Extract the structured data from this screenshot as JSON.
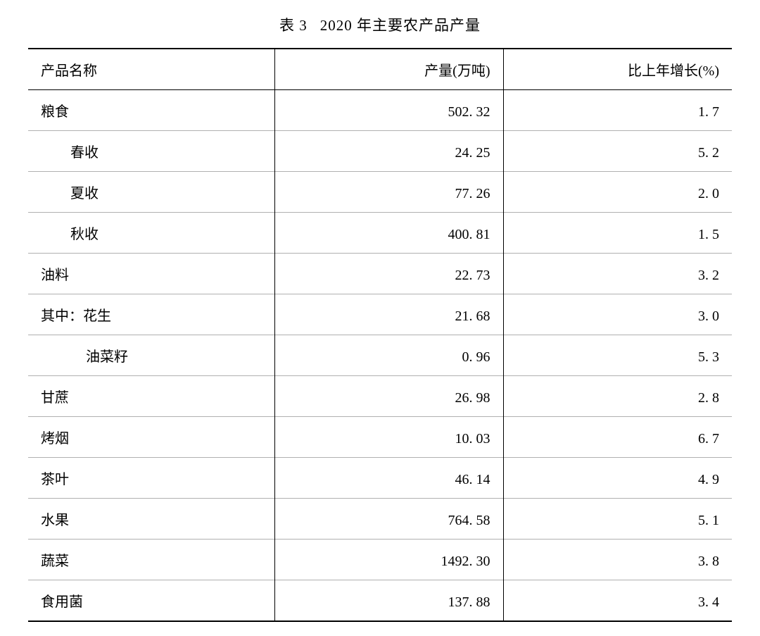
{
  "title_prefix": "表 3",
  "title_main": "2020 年主要农产品产量",
  "columns": {
    "name": "产品名称",
    "value": "产量(万吨)",
    "growth": "比上年增长(%)"
  },
  "rows": [
    {
      "label": "粮食",
      "indent": 0,
      "value": "502. 32",
      "growth": "1. 7"
    },
    {
      "label": "春收",
      "indent": 1,
      "value": "24. 25",
      "growth": "5. 2"
    },
    {
      "label": "夏收",
      "indent": 1,
      "value": "77. 26",
      "growth": "2. 0"
    },
    {
      "label": "秋收",
      "indent": 1,
      "value": "400. 81",
      "growth": "1. 5"
    },
    {
      "label": "油料",
      "indent": 0,
      "value": "22. 73",
      "growth": "3. 2"
    },
    {
      "label": "其中：花生",
      "indent": 0,
      "value": "21. 68",
      "growth": "3. 0"
    },
    {
      "label": "油菜籽",
      "indent": 2,
      "value": "0. 96",
      "growth": "5. 3"
    },
    {
      "label": "甘蔗",
      "indent": 0,
      "value": "26. 98",
      "growth": "2. 8"
    },
    {
      "label": "烤烟",
      "indent": 0,
      "value": "10. 03",
      "growth": "6. 7"
    },
    {
      "label": "茶叶",
      "indent": 0,
      "value": "46. 14",
      "growth": "4. 9"
    },
    {
      "label": "水果",
      "indent": 0,
      "value": "764. 58",
      "growth": "5. 1"
    },
    {
      "label": "蔬菜",
      "indent": 0,
      "value": "1492. 30",
      "growth": "3. 8"
    },
    {
      "label": "食用菌",
      "indent": 0,
      "value": "137. 88",
      "growth": "3. 4"
    }
  ],
  "styling": {
    "background_color": "#ffffff",
    "text_color": "#000000",
    "border_color_heavy": "#000000",
    "border_color_light": "#b0b0b0",
    "font_family": "SimSun",
    "title_fontsize": 21,
    "body_fontsize": 20,
    "col_widths_pct": [
      35,
      32.5,
      32.5
    ],
    "col_align": [
      "left",
      "right",
      "right"
    ]
  }
}
